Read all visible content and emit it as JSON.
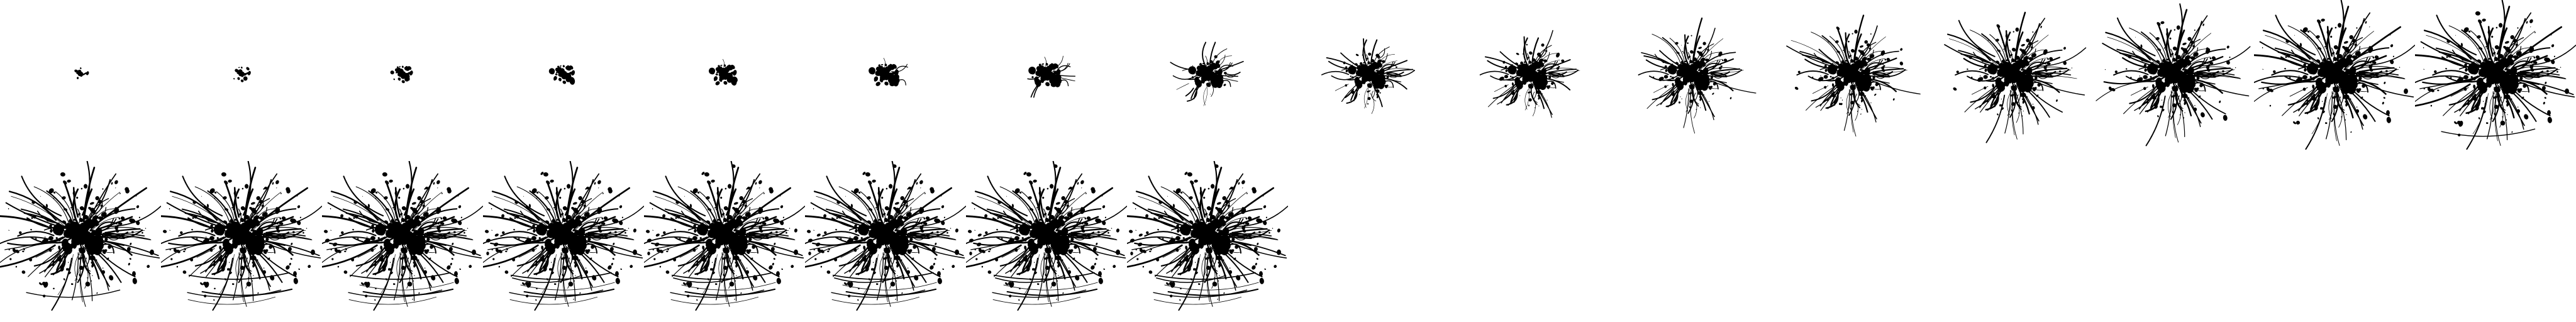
{
  "sheet": {
    "background": "#ffffff",
    "ink_color": "#000000",
    "frame_count": 24,
    "columns": 16,
    "rows": 2,
    "frame_icon": "ink-splatter-icon"
  },
  "frames": [
    {
      "index": 1,
      "progress": 0.04
    },
    {
      "index": 2,
      "progress": 0.08
    },
    {
      "index": 3,
      "progress": 0.13
    },
    {
      "index": 4,
      "progress": 0.17
    },
    {
      "index": 5,
      "progress": 0.21
    },
    {
      "index": 6,
      "progress": 0.25
    },
    {
      "index": 7,
      "progress": 0.29
    },
    {
      "index": 8,
      "progress": 0.33
    },
    {
      "index": 9,
      "progress": 0.38
    },
    {
      "index": 10,
      "progress": 0.42
    },
    {
      "index": 11,
      "progress": 0.46
    },
    {
      "index": 12,
      "progress": 0.5
    },
    {
      "index": 13,
      "progress": 0.54
    },
    {
      "index": 14,
      "progress": 0.58
    },
    {
      "index": 15,
      "progress": 0.63
    },
    {
      "index": 16,
      "progress": 0.67
    },
    {
      "index": 17,
      "progress": 0.71
    },
    {
      "index": 18,
      "progress": 0.75
    },
    {
      "index": 19,
      "progress": 0.79
    },
    {
      "index": 20,
      "progress": 0.83
    },
    {
      "index": 21,
      "progress": 0.88
    },
    {
      "index": 22,
      "progress": 0.92
    },
    {
      "index": 23,
      "progress": 0.96
    },
    {
      "index": 24,
      "progress": 1.0
    }
  ]
}
